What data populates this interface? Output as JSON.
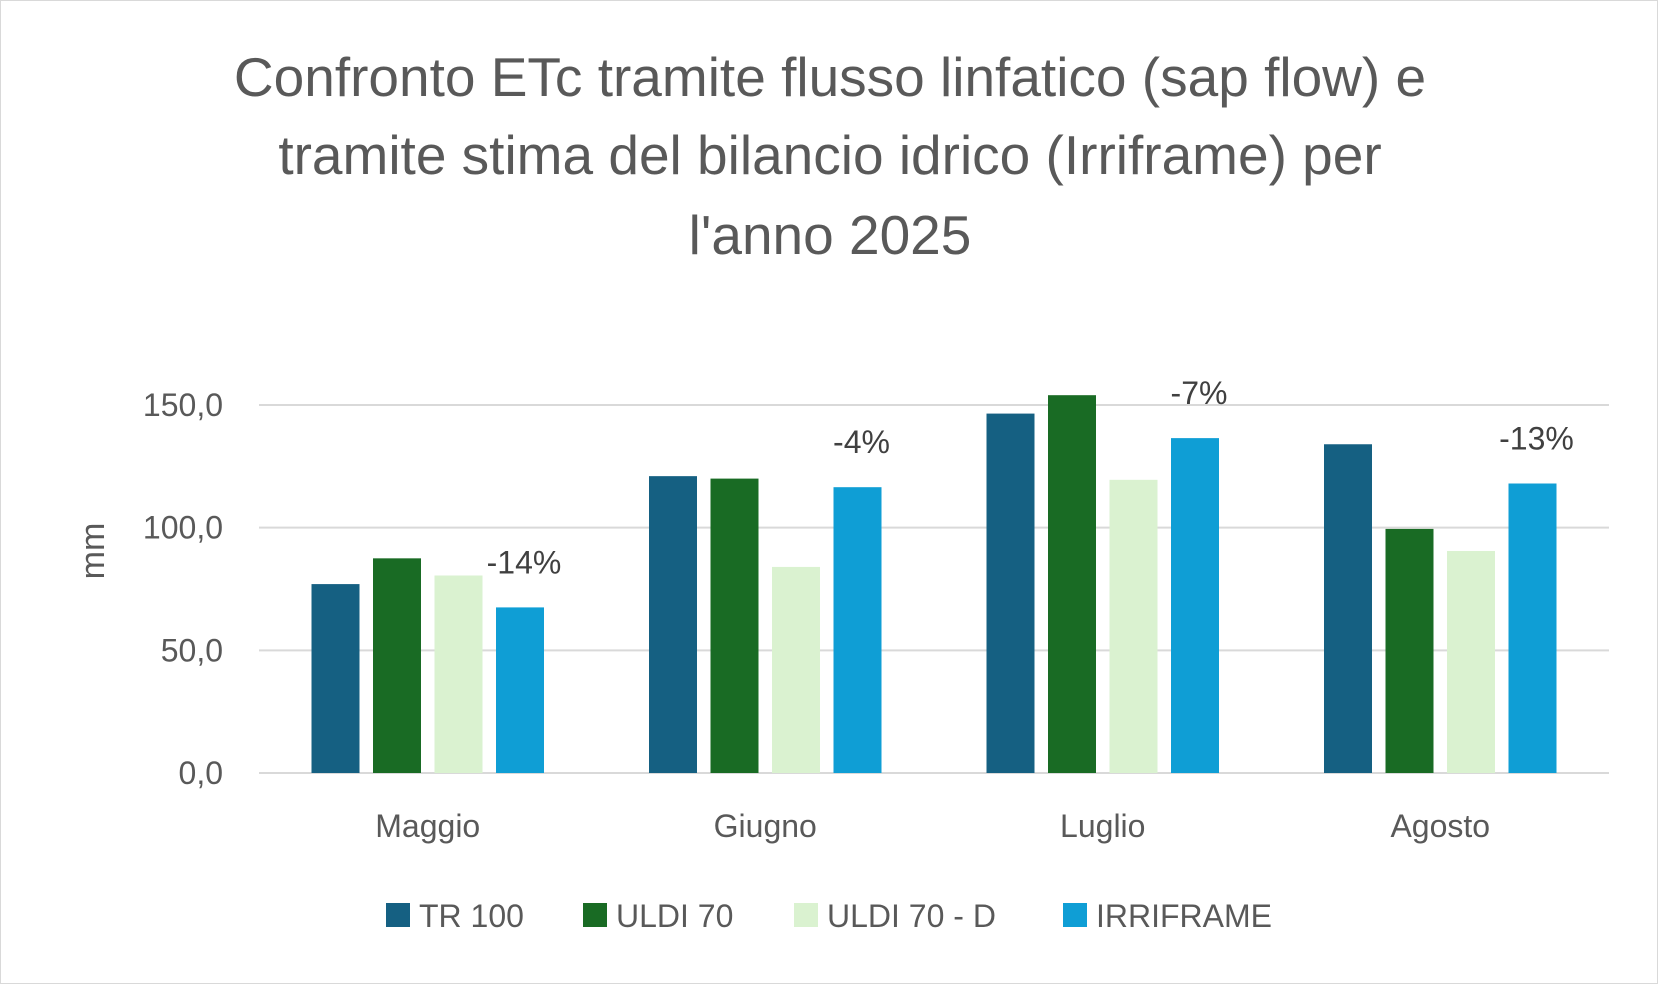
{
  "chart_data": {
    "type": "bar",
    "title_lines": [
      "Confronto ETc tramite flusso linfatico (sap flow) e",
      "tramite stima del bilancio idrico (Irriframe) per",
      "l'anno 2025"
    ],
    "ylabel": "mm",
    "ylim": [
      0,
      150
    ],
    "yticks": [
      0,
      50,
      100,
      150
    ],
    "ytick_labels": [
      "0,0",
      "50,0",
      "100,0",
      "150,0"
    ],
    "gridlines": true,
    "legend_position": "bottom",
    "categories": [
      "Maggio",
      "Giugno",
      "Luglio",
      "Agosto"
    ],
    "series": [
      {
        "name": "TR 100",
        "color": "#156082",
        "values": [
          77,
          121,
          146.5,
          134
        ]
      },
      {
        "name": "ULDI 70",
        "color": "#196b24",
        "values": [
          87.5,
          120,
          154,
          99.5
        ]
      },
      {
        "name": "ULDI 70 - D",
        "color": "#daf2d0",
        "values": [
          80.5,
          84,
          119.5,
          90.5
        ]
      },
      {
        "name": "IRRIFRAME",
        "color": "#0f9ed5",
        "values": [
          67.5,
          116.5,
          136.5,
          118
        ]
      }
    ],
    "annotations": [
      {
        "category": "Maggio",
        "text": "-14%"
      },
      {
        "category": "Giugno",
        "text": "-4%"
      },
      {
        "category": "Luglio",
        "text": "-7%"
      },
      {
        "category": "Agosto",
        "text": "-13%"
      }
    ]
  }
}
